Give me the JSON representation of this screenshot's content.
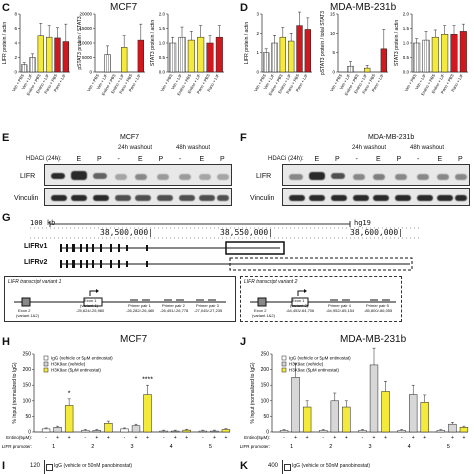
{
  "panels": {
    "C": {
      "label": "C",
      "title": "MCF7"
    },
    "D": {
      "label": "D",
      "title": "MDA-MB-231b"
    },
    "E": {
      "label": "E",
      "title": "MCF7"
    },
    "F": {
      "label": "F",
      "title": "MDA-MB-231b"
    },
    "G": {
      "label": "G"
    },
    "H": {
      "label": "H",
      "title": "MCF7"
    },
    "J": {
      "label": "J",
      "title": "MDA-MB-231b"
    },
    "I": {
      "label": "I"
    },
    "K": {
      "label": "K"
    }
  },
  "charts_c": {
    "ylabels": [
      "LIFR protein / actin",
      "pSTAT3 protein / STAT3",
      "STAT3 protein / actin"
    ],
    "xcats": [
      "Veh + PBS",
      "Veh + LIF",
      "Entino + PBS",
      "Entino + LIF",
      "Pano + PBS",
      "Pano + LIF"
    ]
  },
  "charts_d": {
    "ylabels": [
      "LIFR protein / actin",
      "pSTAT3 protein / total STAT3",
      "STAT3 protein / actin"
    ],
    "xcats": [
      "Veh + PBS",
      "Veh + LIF",
      "Entino + PBS",
      "Entino + LIF",
      "Pano + PBS",
      "Pano + LIF"
    ]
  },
  "chart_data": [
    {
      "type": "bar",
      "panel": "C",
      "ylabel": "LIFR protein / actin",
      "ylim": [
        0,
        8
      ],
      "yticks": [
        "0",
        "2",
        "4",
        "6",
        "8"
      ],
      "categories": [
        "Veh + PBS",
        "Veh + LIF",
        "Entino + PBS",
        "Entino + LIF",
        "Pano + PBS",
        "Pano + LIF"
      ],
      "values": [
        1,
        2,
        5,
        4.8,
        4.7,
        4.2
      ],
      "errors": [
        0.3,
        0.5,
        1.7,
        1.6,
        1.4,
        2.4
      ]
    },
    {
      "type": "bar",
      "panel": "C",
      "ylabel": "pSTAT3 protein / STAT3",
      "ylim": [
        0,
        20000
      ],
      "yticks": [
        "0",
        "5000",
        "10000",
        "15000",
        "20000"
      ],
      "categories": [
        "Veh + PBS",
        "Veh + LIF",
        "Entino + PBS",
        "Entino + LIF",
        "Pano + PBS",
        "Pano + LIF"
      ],
      "values": [
        0,
        6000,
        0,
        8500,
        0,
        11000
      ],
      "errors": [
        0,
        3000,
        0,
        4000,
        0,
        5500
      ]
    },
    {
      "type": "bar",
      "panel": "C",
      "ylabel": "STAT3 protein / actin",
      "ylim": [
        0,
        2.0
      ],
      "yticks": [
        "0.0",
        "0.5",
        "1.0",
        "1.5",
        "2.0"
      ],
      "categories": [
        "Veh + PBS",
        "Veh + LIF",
        "Entino + PBS",
        "Entino + LIF",
        "Pano + PBS",
        "Pano + LIF"
      ],
      "values": [
        1,
        1.2,
        1.1,
        1.2,
        1.0,
        1.2
      ],
      "errors": [
        0.2,
        0.35,
        0.3,
        0.4,
        0.25,
        0.4
      ]
    },
    {
      "type": "bar",
      "panel": "D",
      "ylabel": "LIFR protein / actin",
      "ylim": [
        0,
        3
      ],
      "yticks": [
        "0",
        "1",
        "2",
        "3"
      ],
      "categories": [
        "Veh + PBS",
        "Veh + LIF",
        "Entino + PBS",
        "Entino + LIF",
        "Pano + PBS",
        "Pano + LIF"
      ],
      "values": [
        1,
        1.5,
        1.8,
        1.6,
        2.4,
        2.2
      ],
      "errors": [
        0.2,
        0.4,
        0.5,
        0.4,
        0.7,
        0.6
      ]
    },
    {
      "type": "bar",
      "panel": "D",
      "ylabel": "pSTAT3 protein / total STAT3",
      "ylim": [
        0,
        15
      ],
      "yticks": [
        "0",
        "5",
        "10",
        "15"
      ],
      "categories": [
        "Veh + PBS",
        "Veh + LIF",
        "Entino + PBS",
        "Entino + LIF",
        "Pano + PBS",
        "Pano + LIF"
      ],
      "values": [
        0,
        1.5,
        0,
        1,
        0,
        6
      ],
      "errors": [
        0,
        1.2,
        0,
        0.7,
        0,
        5
      ]
    },
    {
      "type": "bar",
      "panel": "D",
      "ylabel": "STAT3 protein / actin",
      "ylim": [
        0,
        2.0
      ],
      "yticks": [
        "0.0",
        "0.5",
        "1.0",
        "1.5",
        "2.0"
      ],
      "categories": [
        "Veh + PBS",
        "Veh + LIF",
        "Entino + PBS",
        "Entino + LIF",
        "Pano + PBS",
        "Pano + LIF"
      ],
      "values": [
        1,
        1.1,
        1.2,
        1.3,
        1.3,
        1.4
      ],
      "errors": [
        0.15,
        0.3,
        0.25,
        0.3,
        0.3,
        0.25
      ]
    },
    {
      "type": "bar",
      "panel": "H",
      "title": "MCF7",
      "ylabel": "% Input (normalized to IgG)",
      "ylim": [
        0,
        250
      ],
      "yticks": [
        "0",
        "50",
        "100",
        "150",
        "200",
        "250"
      ],
      "categories": [
        "1",
        "2",
        "3",
        "4",
        "5"
      ],
      "series": [
        {
          "name": "IgG (vehicle or 5μM entinostat)",
          "values": [
            10,
            5,
            10,
            3,
            3
          ]
        },
        {
          "name": "H3K9ac (vehicle)",
          "values": [
            15,
            5,
            20,
            3,
            3
          ]
        },
        {
          "name": "H3K9ac (5μM entinostat)",
          "values": [
            85,
            28,
            120,
            6,
            8
          ]
        }
      ]
    },
    {
      "type": "bar",
      "panel": "J",
      "title": "MDA-MB-231b",
      "ylabel": "% Input (normalized to IgG)",
      "ylim": [
        0,
        250
      ],
      "yticks": [
        "0",
        "50",
        "100",
        "150",
        "200",
        "250"
      ],
      "categories": [
        "1",
        "2",
        "3",
        "4",
        "5"
      ],
      "series": [
        {
          "name": "IgG (vehicle or 5μM entinostat)",
          "values": [
            5,
            5,
            5,
            5,
            5
          ]
        },
        {
          "name": "H3K9ac (vehicle)",
          "values": [
            175,
            100,
            215,
            120,
            25
          ]
        },
        {
          "name": "H3K9ac (5μM entinostat)",
          "values": [
            80,
            80,
            130,
            95,
            15
          ]
        }
      ]
    }
  ],
  "blot_e": {
    "hdaci": "HDACi (24h):",
    "washout24": "24h washout",
    "washout48": "48h washout",
    "lanes": [
      "-",
      "E",
      "P",
      "-",
      "E",
      "P",
      "-",
      "E",
      "P"
    ],
    "row1": "LIFR",
    "row2": "Vinculin"
  },
  "blot_f": {
    "hdaci": "HDACi (24h):",
    "washout24": "24h washout",
    "washout48": "48h washout",
    "lanes": [
      "-",
      "E",
      "P",
      "-",
      "E",
      "P",
      "-",
      "E",
      "P"
    ],
    "row1": "LIFR",
    "row2": "Vinculin"
  },
  "genome": {
    "scale": "100 kb",
    "assembly": "hg19",
    "coord1": "38,500,000|",
    "coord2": "38,550,000|",
    "coord3": "38,600,000|",
    "variant1": "LIFRv1",
    "variant2": "LIFRv2"
  },
  "map1": {
    "title": "LIFR transcript variant 1",
    "exon2": "Exon 2",
    "exon2sub": "(variant 1&2)",
    "exon1": "Exon 1",
    "exon1sub": "(variant 1)",
    "exon1coord": "-25,624/-25,980",
    "p1": "Primer pair 1",
    "p1c": "-26,282/-26,480",
    "p2": "Primer pair 2",
    "p2c": "-26,451/-26,778",
    "p3": "Primer pair 3",
    "p3c": "-27,045/-27,235"
  },
  "map2": {
    "title": "LIFR transcript variant 2",
    "exon2": "Exon 2",
    "exon2sub": "(variant 1&2)",
    "exon1": "Exon 1",
    "exon1sub": "(variant 2)",
    "exon1coord": "-64,453/-64,706",
    "p4": "Primer pair 4",
    "p4c": "-64,952/-65,154",
    "p5": "Primer pair 5",
    "p5c": "-85,800/-86,055"
  },
  "chip": {
    "legend": [
      "IgG (vehicle or 5μM entinostat)",
      "H3K9ac (vehicle)",
      "H3K9ac (5μM entinostat)"
    ],
    "ylabel": "% Input (normalized to IgG)",
    "entino": "Entino(5μM):",
    "promoter": "LIFR promoter:",
    "signs": [
      "-",
      "+",
      "+"
    ],
    "star1": "*",
    "star3": "****"
  },
  "bottom": {
    "i_tick": "120",
    "i_legend": "IgG (vehicle or 50nM panobinostat)",
    "k_tick": "400",
    "k_legend": "IgG (vehicle or 50nM panobinostat)"
  }
}
